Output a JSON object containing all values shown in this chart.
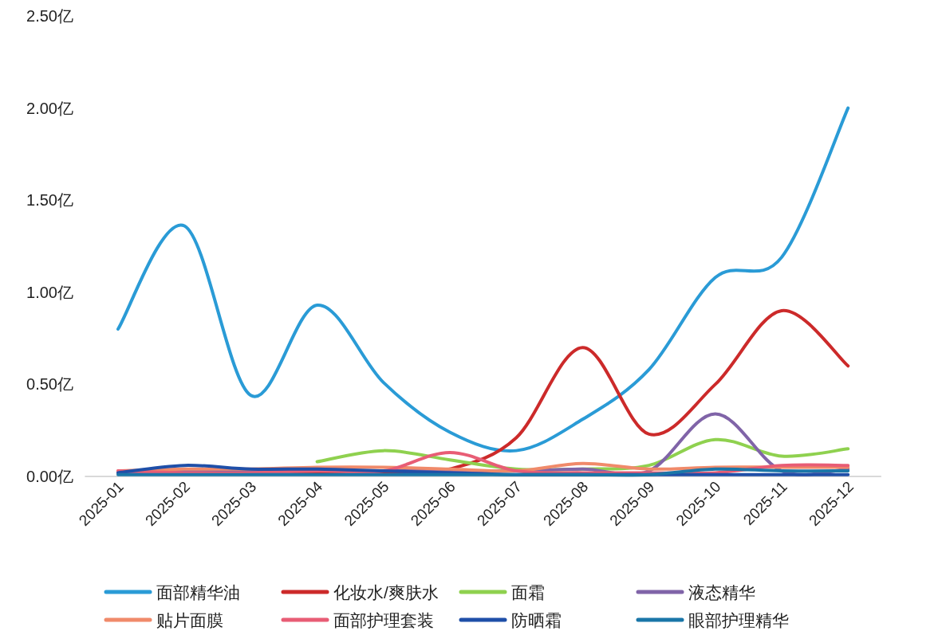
{
  "chart_data": {
    "type": "line",
    "categories": [
      "2025-01",
      "2025-02",
      "2025-03",
      "2025-04",
      "2025-05",
      "2025-06",
      "2025-07",
      "2025-08",
      "2025-09",
      "2025-10",
      "2025-11",
      "2025-12"
    ],
    "series": [
      {
        "name": "面部精华油",
        "color": "#2a9bd6",
        "values": [
          0.8,
          1.36,
          0.44,
          0.93,
          0.51,
          0.24,
          0.14,
          0.31,
          0.58,
          1.08,
          1.19,
          2.0
        ]
      },
      {
        "name": "化妆水/爽肤水",
        "color": "#cc2a2a",
        "values": [
          0.02,
          0.03,
          0.02,
          0.02,
          0.02,
          0.04,
          0.21,
          0.7,
          0.23,
          0.5,
          0.9,
          0.6
        ]
      },
      {
        "name": "面霜",
        "color": "#8fd14f",
        "values": [
          null,
          null,
          null,
          0.08,
          0.14,
          0.09,
          0.04,
          0.04,
          0.06,
          0.2,
          0.11,
          0.15
        ]
      },
      {
        "name": "液态精华",
        "color": "#8064a8",
        "values": [
          0.02,
          0.03,
          0.03,
          0.03,
          0.03,
          0.03,
          0.03,
          0.04,
          0.03,
          0.34,
          0.03,
          0.04
        ]
      },
      {
        "name": "贴片面膜",
        "color": "#f08a6a",
        "values": [
          0.03,
          0.04,
          0.04,
          0.05,
          0.05,
          0.04,
          0.03,
          0.07,
          0.04,
          0.05,
          0.05,
          0.05
        ]
      },
      {
        "name": "面部护理套装",
        "color": "#e85d75",
        "values": [
          0.03,
          0.02,
          0.02,
          0.03,
          0.03,
          0.13,
          0.03,
          0.02,
          0.02,
          0.02,
          0.06,
          0.06
        ]
      },
      {
        "name": "防晒霜",
        "color": "#1f4fa8",
        "values": [
          0.02,
          0.06,
          0.04,
          0.04,
          0.03,
          0.02,
          0.01,
          0.01,
          0.01,
          0.01,
          0.01,
          0.01
        ]
      },
      {
        "name": "眼部护理精华",
        "color": "#1a76a8",
        "values": [
          0.01,
          0.01,
          0.01,
          0.01,
          0.01,
          0.01,
          0.01,
          0.01,
          0.01,
          0.04,
          0.03,
          0.03
        ]
      }
    ],
    "ylim": [
      0,
      2.5
    ],
    "yticks": [
      {
        "value": 0,
        "label": "0.00亿"
      },
      {
        "value": 0.5,
        "label": "0.50亿"
      },
      {
        "value": 1,
        "label": "1.00亿"
      },
      {
        "value": 1.5,
        "label": "1.50亿"
      },
      {
        "value": 2,
        "label": "2.00亿"
      },
      {
        "value": 2.5,
        "label": "2.50亿"
      }
    ],
    "legend": "bottom"
  }
}
